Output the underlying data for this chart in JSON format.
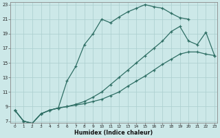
{
  "xlabel": "Humidex (Indice chaleur)",
  "background_color": "#cce8e8",
  "grid_color": "#aacece",
  "line_color": "#2e6e64",
  "xlim": [
    0,
    23
  ],
  "ylim": [
    7,
    23
  ],
  "yticks": [
    7,
    9,
    11,
    13,
    15,
    17,
    19,
    21,
    23
  ],
  "xticks": [
    0,
    1,
    2,
    3,
    4,
    5,
    6,
    7,
    8,
    9,
    10,
    11,
    12,
    13,
    14,
    15,
    16,
    17,
    18,
    19,
    20,
    21,
    22,
    23
  ],
  "line1_x": [
    0,
    1,
    2,
    3,
    4,
    5,
    6,
    7,
    8,
    9,
    10,
    11,
    12,
    13,
    14,
    15,
    16,
    17,
    18,
    19,
    20
  ],
  "line1_y": [
    8.5,
    7.0,
    6.7,
    8.0,
    8.5,
    8.8,
    12.5,
    14.5,
    17.5,
    19.0,
    21.0,
    20.5,
    21.3,
    22.0,
    22.5,
    23.0,
    22.7,
    22.5,
    21.8,
    21.2,
    21.0
  ],
  "line2_x": [
    0,
    1,
    2,
    3,
    4,
    5,
    6,
    7,
    8,
    9,
    10,
    11,
    12,
    13,
    14,
    15,
    16,
    17,
    18,
    19,
    20,
    21,
    22,
    23
  ],
  "line2_y": [
    8.5,
    7.0,
    6.7,
    8.0,
    8.5,
    8.8,
    9.0,
    9.3,
    9.7,
    10.3,
    11.0,
    12.0,
    13.0,
    14.0,
    15.0,
    16.0,
    17.0,
    18.0,
    19.3,
    20.0,
    18.0,
    17.5,
    19.2,
    16.0
  ],
  "line3_x": [
    0,
    1,
    2,
    3,
    4,
    5,
    6,
    7,
    8,
    9,
    10,
    11,
    12,
    13,
    14,
    15,
    16,
    17,
    18,
    19,
    20,
    21,
    22,
    23
  ],
  "line3_y": [
    8.5,
    7.0,
    6.7,
    8.0,
    8.5,
    8.8,
    9.0,
    9.2,
    9.4,
    9.7,
    10.0,
    10.5,
    11.0,
    11.8,
    12.5,
    13.2,
    14.0,
    14.8,
    15.5,
    16.2,
    16.5,
    16.5,
    16.2,
    16.0
  ]
}
